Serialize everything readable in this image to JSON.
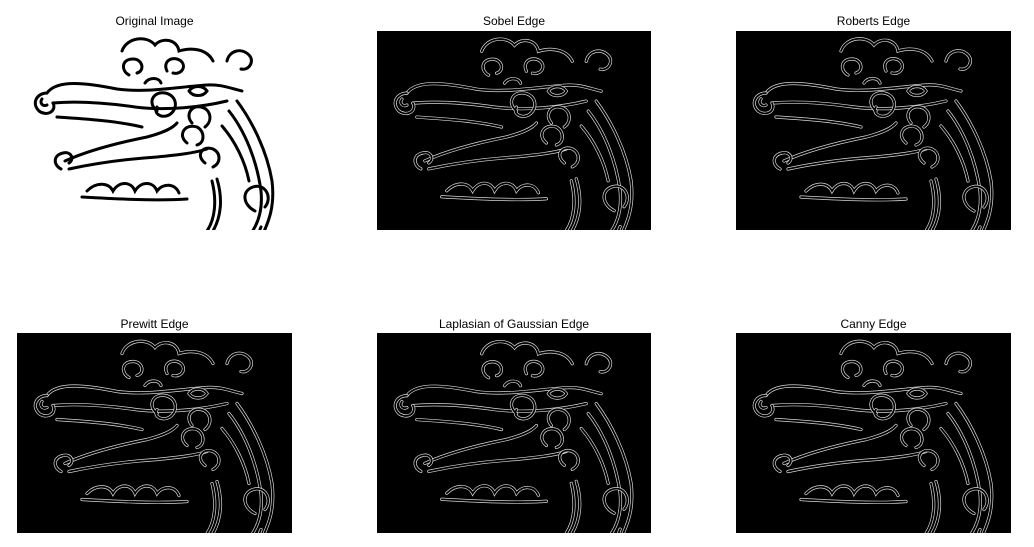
{
  "panels": [
    {
      "title": "Original Image",
      "style": "original"
    },
    {
      "title": "Sobel Edge",
      "style": "edge"
    },
    {
      "title": "Roberts Edge",
      "style": "edge"
    },
    {
      "title": "Prewitt Edge",
      "style": "edge"
    },
    {
      "title": "Laplasian of Gaussian Edge",
      "style": "edge"
    },
    {
      "title": "Canny Edge",
      "style": "edge"
    }
  ],
  "colors": {
    "background": "#ffffff",
    "edge_bg": "#000000",
    "edge_line": "#d9d9d9",
    "ink": "#000000"
  }
}
